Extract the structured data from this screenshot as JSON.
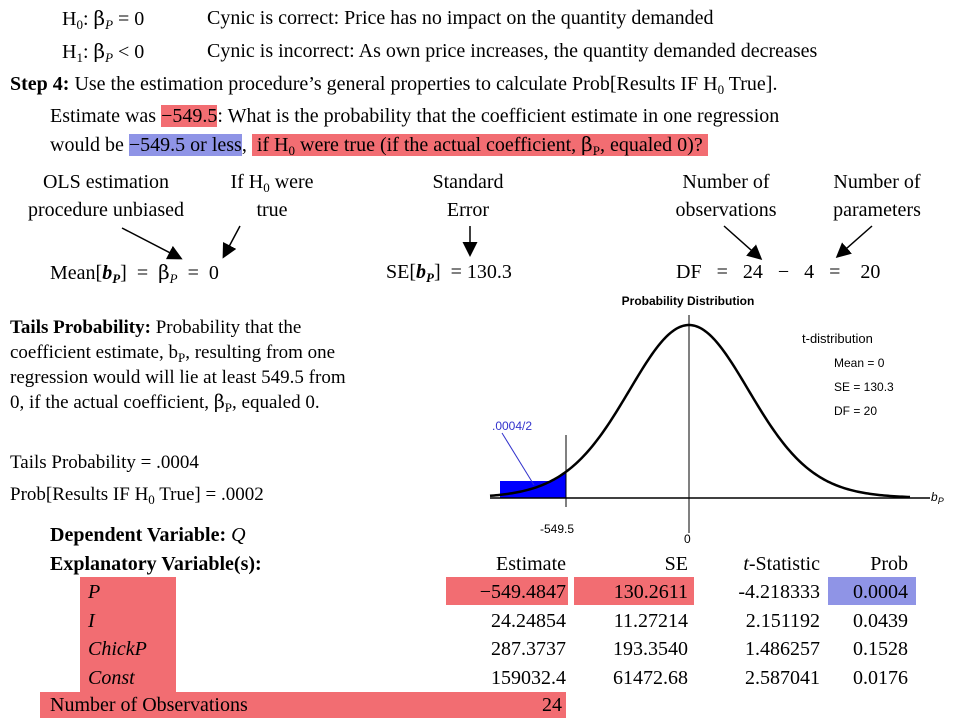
{
  "hypotheses": {
    "h0_label": "H",
    "h0_sub": "0",
    "h0_rel": ": βP = 0",
    "h0_text": "Cynic is correct: Price has no impact on the quantity demanded",
    "h1_label": "H",
    "h1_sub": "1",
    "h1_rel": ": βP < 0",
    "h1_text": "Cynic is incorrect: As own price increases, the quantity demanded decreases"
  },
  "step4": {
    "label": "Step 4:",
    "text_a": " Use the estimation procedure’s general properties to calculate Prob[Results IF H",
    "text_sub": "0",
    "text_b": " True]."
  },
  "estimate_line": {
    "pre": "Estimate was ",
    "value": "−549.5",
    "post": ": What is the probability that the coefficient estimate in one regression",
    "line2_pre": "would be ",
    "line2_blue": "−549.5 or less",
    "line2_mid": ", ",
    "line2_red": "if H0 were true (if the actual coefficient, βP, equaled 0)?"
  },
  "headers": {
    "ols": [
      "OLS estimation",
      "procedure unbiased"
    ],
    "ifh0": [
      "If H0 were",
      "true"
    ],
    "se": [
      "Standard",
      "Error"
    ],
    "nobs": [
      "Number of",
      "observations"
    ],
    "npar": [
      "Number of",
      "parameters"
    ]
  },
  "formulas": {
    "mean": "Mean[bP] = βP = 0",
    "se": "SE[bP] = 130.3",
    "df": "DF = 24 − 4 = 20"
  },
  "tails": {
    "title": "Tails Probability:",
    "line1": " Probability that the",
    "line2": "coefficient estimate, bP, resulting from one",
    "line3": "regression would will lie at least 549.5 from",
    "line4": "0, if the actual coefficient, βP, equaled 0.",
    "tp": "Tails Probability = .0004",
    "prob": "Prob[Results IF H0 True] = .0002"
  },
  "distribution": {
    "title": "Probability Distribution",
    "dist_name": "t-distribution",
    "mean": "Mean = 0",
    "se": "SE = 130.3",
    "df": "DF = 20",
    "tail_label": ".0004/2",
    "cut_label": "-549.5",
    "zero_label": "0",
    "axis_label": "bP",
    "colors": {
      "tail": "#0000ff",
      "label": "#3333cc"
    }
  },
  "regression": {
    "dep_label": "Dependent Variable:",
    "dep_var": "Q",
    "expl_label": "Explanatory Variable(s):",
    "columns": [
      "Estimate",
      "SE",
      "t-Statistic",
      "Prob"
    ],
    "rows": [
      {
        "var": "P",
        "estimate": "−549.4847",
        "se": "130.2611",
        "t": "-4.218333",
        "prob": "0.0004"
      },
      {
        "var": "I",
        "estimate": "24.24854",
        "se": "11.27214",
        "t": "2.151192",
        "prob": "0.0439"
      },
      {
        "var": "ChickP",
        "estimate": "287.3737",
        "se": "193.3540",
        "t": "1.486257",
        "prob": "0.1528"
      },
      {
        "var": "Const",
        "estimate": "159032.4",
        "se": "61472.68",
        "t": "2.587041",
        "prob": "0.0176"
      }
    ],
    "nobs_label": "Number of Observations",
    "nobs_value": "24"
  }
}
